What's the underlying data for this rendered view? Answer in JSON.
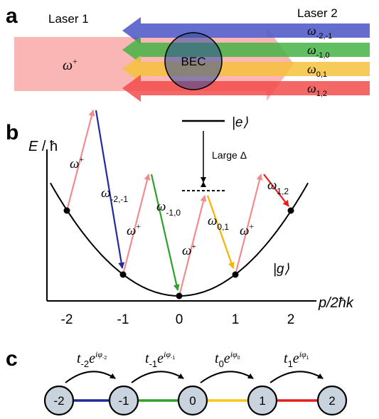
{
  "panel_a": {
    "label": "a",
    "laser1": "Laser 1",
    "laser2": "Laser 2",
    "omega_plus_base": "ω",
    "omega_plus_sup": "+",
    "bec": "BEC",
    "beams": [
      {
        "base": "ω",
        "sub": "-2,-1",
        "color": "#4a55c6"
      },
      {
        "base": "ω",
        "sub": "-1,0",
        "color": "#45b445"
      },
      {
        "base": "ω",
        "sub": "0,1",
        "color": "#f6c23c"
      },
      {
        "base": "ω",
        "sub": "1,2",
        "color": "#f24c4c"
      }
    ],
    "laser1_color": "#f9a8a8"
  },
  "panel_b": {
    "label": "b",
    "ylabel_italic": "E",
    "ylabel_rest": " / ħ",
    "xlabel": "p/2ħk",
    "excited": "|e⟩",
    "ground": "|g⟩",
    "detuning": "Large Δ",
    "xticks": [
      "-2",
      "-1",
      "0",
      "1",
      "2"
    ],
    "transition_labels": [
      {
        "base": "ω",
        "sub": "",
        "sup": "+"
      },
      {
        "base": "ω",
        "sub": "-2,-1",
        "sup": ""
      },
      {
        "base": "ω",
        "sub": "",
        "sup": "+"
      },
      {
        "base": "ω",
        "sub": "-1,0",
        "sup": ""
      },
      {
        "base": "ω",
        "sub": "",
        "sup": "+"
      },
      {
        "base": "ω",
        "sub": "0,1",
        "sup": ""
      },
      {
        "base": "ω",
        "sub": "",
        "sup": "+"
      },
      {
        "base": "ω",
        "sub": "1,2",
        "sup": ""
      }
    ],
    "colors": {
      "up": "#f28c8c",
      "d1": "#1f2a9c",
      "d2": "#2aa22a",
      "d3": "#f5b400",
      "d4": "#e81c1c"
    }
  },
  "panel_c": {
    "label": "c",
    "nodes": [
      "-2",
      "-1",
      "0",
      "1",
      "2"
    ],
    "node_fill": "#c9d3de",
    "link_colors": [
      "#1f2a9c",
      "#2aa22a",
      "#f5c518",
      "#e81c1c"
    ],
    "hops": [
      {
        "base": "t",
        "sub": "-2",
        "exp": "e",
        "exp_sup": "iφ",
        "exp_sub": "-2"
      },
      {
        "base": "t",
        "sub": "-1",
        "exp": "e",
        "exp_sup": "iφ",
        "exp_sub": "-1"
      },
      {
        "base": "t",
        "sub": "0",
        "exp": "e",
        "exp_sup": "iφ",
        "exp_sub": "0"
      },
      {
        "base": "t",
        "sub": "1",
        "exp": "e",
        "exp_sup": "iφ",
        "exp_sub": "1"
      }
    ]
  }
}
